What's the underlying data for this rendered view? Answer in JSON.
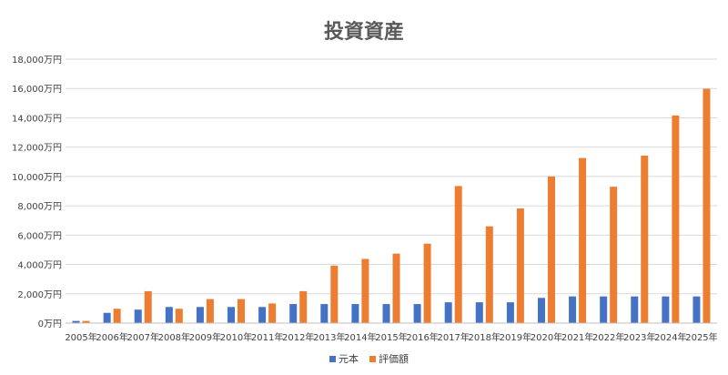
{
  "chart_data": {
    "type": "bar",
    "title": "投資資産",
    "categories": [
      "2005年",
      "2006年",
      "2007年",
      "2008年",
      "2009年",
      "2010年",
      "2011年",
      "2012年",
      "2013年",
      "2014年",
      "2015年",
      "2016年",
      "2017年",
      "2018年",
      "2019年",
      "2020年",
      "2021年",
      "2022年",
      "2023年",
      "2024年",
      "2025年"
    ],
    "series": [
      {
        "name": "元本",
        "color": "#4472C4",
        "values": [
          150,
          700,
          920,
          1100,
          1100,
          1100,
          1100,
          1300,
          1300,
          1300,
          1300,
          1300,
          1420,
          1420,
          1420,
          1720,
          1820,
          1820,
          1820,
          1820,
          1820
        ]
      },
      {
        "name": "評価額",
        "color": "#ED7D31",
        "values": [
          150,
          980,
          2180,
          980,
          1640,
          1640,
          1340,
          2180,
          3920,
          4380,
          4740,
          5420,
          9350,
          6600,
          7820,
          10000,
          11260,
          9300,
          11420,
          14160,
          15980
        ]
      }
    ],
    "ylim": [
      0,
      18000
    ],
    "yticks": [
      {
        "value": 0,
        "label": "0万円"
      },
      {
        "value": 2000,
        "label": "2,000万円"
      },
      {
        "value": 4000,
        "label": "4,000万円"
      },
      {
        "value": 6000,
        "label": "6,000万円"
      },
      {
        "value": 8000,
        "label": "8,000万円"
      },
      {
        "value": 10000,
        "label": "10,000万円"
      },
      {
        "value": 12000,
        "label": "12,000万円"
      },
      {
        "value": 14000,
        "label": "14,000万円"
      },
      {
        "value": 16000,
        "label": "16,000万円"
      },
      {
        "value": 18000,
        "label": "18,000万円"
      }
    ],
    "grid": true,
    "legend_position": "bottom",
    "gridline_color": "#D9D9D9",
    "axis_line_color": "#BFBFBF"
  }
}
